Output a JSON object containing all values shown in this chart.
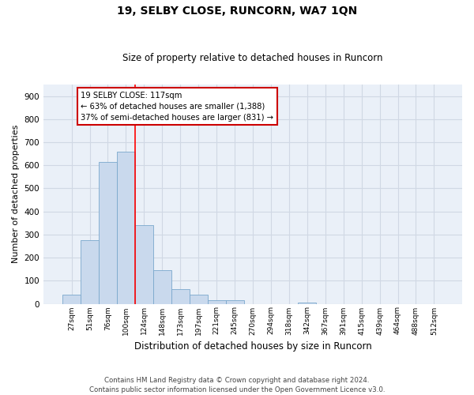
{
  "title1": "19, SELBY CLOSE, RUNCORN, WA7 1QN",
  "title2": "Size of property relative to detached houses in Runcorn",
  "xlabel": "Distribution of detached houses by size in Runcorn",
  "ylabel": "Number of detached properties",
  "footer1": "Contains HM Land Registry data © Crown copyright and database right 2024.",
  "footer2": "Contains public sector information licensed under the Open Government Licence v3.0.",
  "bin_labels": [
    "27sqm",
    "51sqm",
    "76sqm",
    "100sqm",
    "124sqm",
    "148sqm",
    "173sqm",
    "197sqm",
    "221sqm",
    "245sqm",
    "270sqm",
    "294sqm",
    "318sqm",
    "342sqm",
    "367sqm",
    "391sqm",
    "415sqm",
    "439sqm",
    "464sqm",
    "488sqm",
    "512sqm"
  ],
  "bar_values": [
    40,
    275,
    615,
    660,
    340,
    145,
    65,
    40,
    15,
    15,
    0,
    0,
    0,
    5,
    0,
    0,
    0,
    0,
    0,
    0,
    0
  ],
  "bar_color": "#c9d9ed",
  "bar_edgecolor": "#7aa8cc",
  "grid_color": "#d0d8e4",
  "bg_color": "#eaf0f8",
  "red_line_x": 3.5,
  "annotation_line1": "19 SELBY CLOSE: 117sqm",
  "annotation_line2": "← 63% of detached houses are smaller (1,388)",
  "annotation_line3": "37% of semi-detached houses are larger (831) →",
  "annotation_box_color": "#ffffff",
  "annotation_border_color": "#cc0000",
  "ylim": [
    0,
    950
  ],
  "yticks": [
    0,
    100,
    200,
    300,
    400,
    500,
    600,
    700,
    800,
    900
  ],
  "figw": 6.0,
  "figh": 5.0,
  "dpi": 100
}
